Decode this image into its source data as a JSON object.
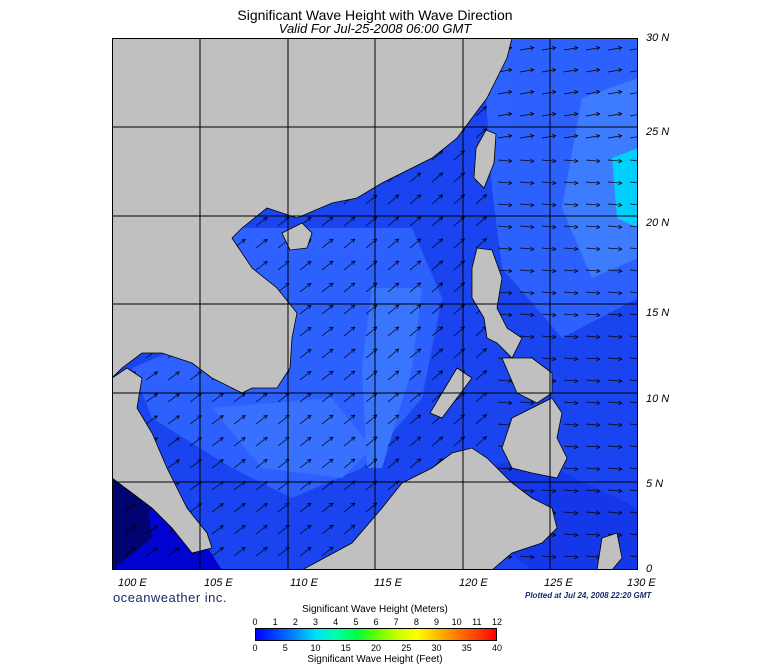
{
  "title": "Significant Wave Height with Wave Direction",
  "subtitle": "Valid For Jul-25-2008 06:00 GMT",
  "lat_labels": [
    "30 N",
    "25 N",
    "20 N",
    "15 N",
    "10 N",
    "5 N",
    "0"
  ],
  "lon_labels": [
    "100 E",
    "105 E",
    "110 E",
    "115 E",
    "120 E",
    "125 E",
    "130 E"
  ],
  "brand": "oceanweather inc.",
  "plotted": "Plotted at Jul 24, 2008 22:20 GMT",
  "colorbar": {
    "title_meters": "Significant Wave Height (Meters)",
    "meters_ticks": [
      "0",
      "1",
      "2",
      "3",
      "4",
      "5",
      "6",
      "7",
      "8",
      "9",
      "10",
      "11",
      "12"
    ],
    "title_feet": "Significant Wave Height (Feet)",
    "feet_ticks": [
      "0",
      "5",
      "10",
      "15",
      "20",
      "25",
      "30",
      "35",
      "40"
    ]
  },
  "colors": {
    "land": "#c0c0c0",
    "ocean_deep": "#0000f0",
    "ocean_mid": "#1e4cff",
    "ocean_light": "#3d7bff",
    "ocean_cyan": "#00e8ff",
    "grid": "#000000"
  }
}
